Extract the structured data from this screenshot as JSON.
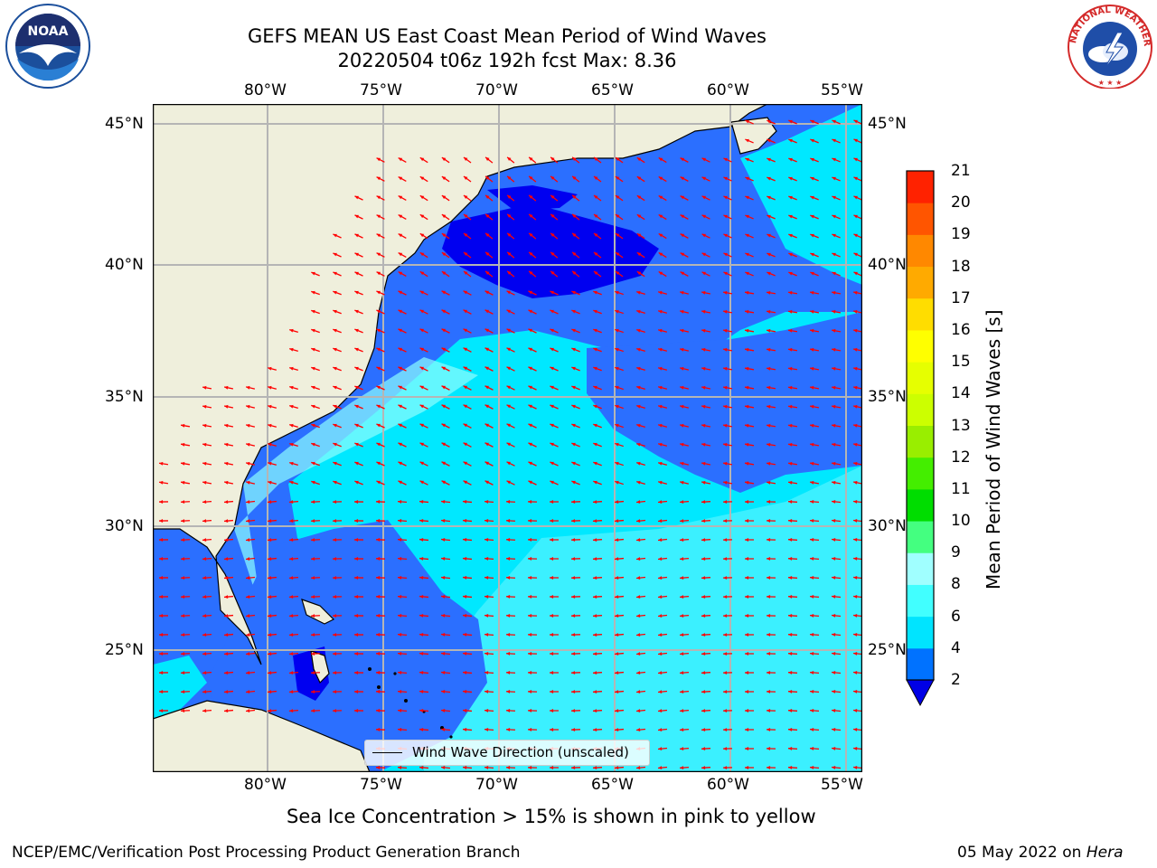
{
  "title": {
    "line1": "GEFS MEAN US East Coast Mean Period of Wind Waves",
    "line2": "20220504 t06z 192h fcst   Max: 8.36"
  },
  "logos": {
    "left": {
      "icon": "noaa-logo",
      "text": "NOAA"
    },
    "right": {
      "icon": "nws-logo",
      "text": "NATIONAL WEATHER SERVICE"
    }
  },
  "map": {
    "lon_labels": [
      "80°W",
      "75°W",
      "70°W",
      "65°W",
      "60°W",
      "55°W"
    ],
    "lat_labels": [
      "45°N",
      "40°N",
      "35°N",
      "30°N",
      "25°N"
    ],
    "legend": {
      "label": "Wind Wave Direction (unscaled)"
    },
    "land_color": "#efefdc",
    "ocean_colors": [
      "#0000f0",
      "#2b6fff",
      "#00e0ff",
      "#8dfdfd"
    ],
    "arrow_color": "#ff0000"
  },
  "colorbar": {
    "label": "Mean Period of Wind Waves [s]",
    "ticks": [
      "2",
      "4",
      "6",
      "8",
      "9",
      "10",
      "11",
      "12",
      "13",
      "14",
      "15",
      "16",
      "17",
      "18",
      "19",
      "20",
      "21"
    ],
    "colors": [
      "#0072ff",
      "#00e4ff",
      "#41ffff",
      "#a0ffff",
      "#44ff80",
      "#00dd00",
      "#44ee00",
      "#99ee00",
      "#ccff00",
      "#e6ff00",
      "#ffff00",
      "#ffdd00",
      "#ffaa00",
      "#ff8800",
      "#ff5500",
      "#ff2200"
    ],
    "extend_color": "#0000e6"
  },
  "notes": {
    "sea_ice": "Sea Ice Concentration > 15% is shown in pink to yellow",
    "credit": "NCEP/EMC/Verification Post Processing Product Generation Branch",
    "date": "05 May 2022 on",
    "host": "Hera"
  }
}
